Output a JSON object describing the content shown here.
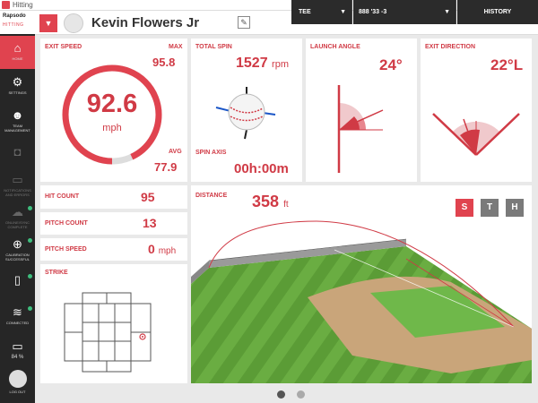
{
  "window": {
    "title": "Hitting",
    "minimize": "—",
    "maximize": "☐",
    "close": "✕"
  },
  "logo": {
    "brand": "Rapsodo",
    "product": "HITTING"
  },
  "sidebar": {
    "home": "HOME",
    "settings": "SETTINGS",
    "team": "TEAM MANAGEMENT",
    "notifications": "NOTIFICATIONS AND ERRORS",
    "cloud": "ONLINE/SYNC COMPLETE",
    "calibration": "CALIBRATION SUCCESSFUL",
    "wifi": "CONNECTED",
    "battery_pct": "84 %",
    "logout": "LOG OUT"
  },
  "header": {
    "player_name": "Kevin Flowers Jr",
    "tee_select": "TEE",
    "bat_select": "888 '33 -3",
    "history": "HISTORY"
  },
  "exit_speed": {
    "label": "EXIT SPEED",
    "value": "92.6",
    "unit": "mph",
    "max_label": "MAX",
    "max": "95.8",
    "avg_label": "AVG",
    "avg": "77.9",
    "fill_fraction": 0.93
  },
  "spin": {
    "label": "TOTAL SPIN",
    "value": "1527",
    "unit": "rpm",
    "axis_label": "SPIN AXIS",
    "axis_value": "00h:00m"
  },
  "launch": {
    "label": "LAUNCH ANGLE",
    "value": "24°"
  },
  "direction": {
    "label": "EXIT DIRECTION",
    "value": "22°L"
  },
  "hit_count": {
    "label": "HIT COUNT",
    "value": "95"
  },
  "pitch_count": {
    "label": "PITCH COUNT",
    "value": "13"
  },
  "pitch_speed": {
    "label": "PITCH SPEED",
    "value": "0",
    "unit": "mph"
  },
  "strike": {
    "label": "STRIKE"
  },
  "distance": {
    "label": "DISTANCE",
    "value": "358",
    "unit": "ft",
    "views": [
      "S",
      "T",
      "H"
    ],
    "active_view": "S"
  },
  "colors": {
    "accent": "#e0434f",
    "dark": "#2b2b2b",
    "grass": "#5fa23a",
    "active_tab": "#e0434f",
    "inactive_tab": "#7a7a7a"
  },
  "pager": {
    "pages": 2,
    "current": 1
  }
}
